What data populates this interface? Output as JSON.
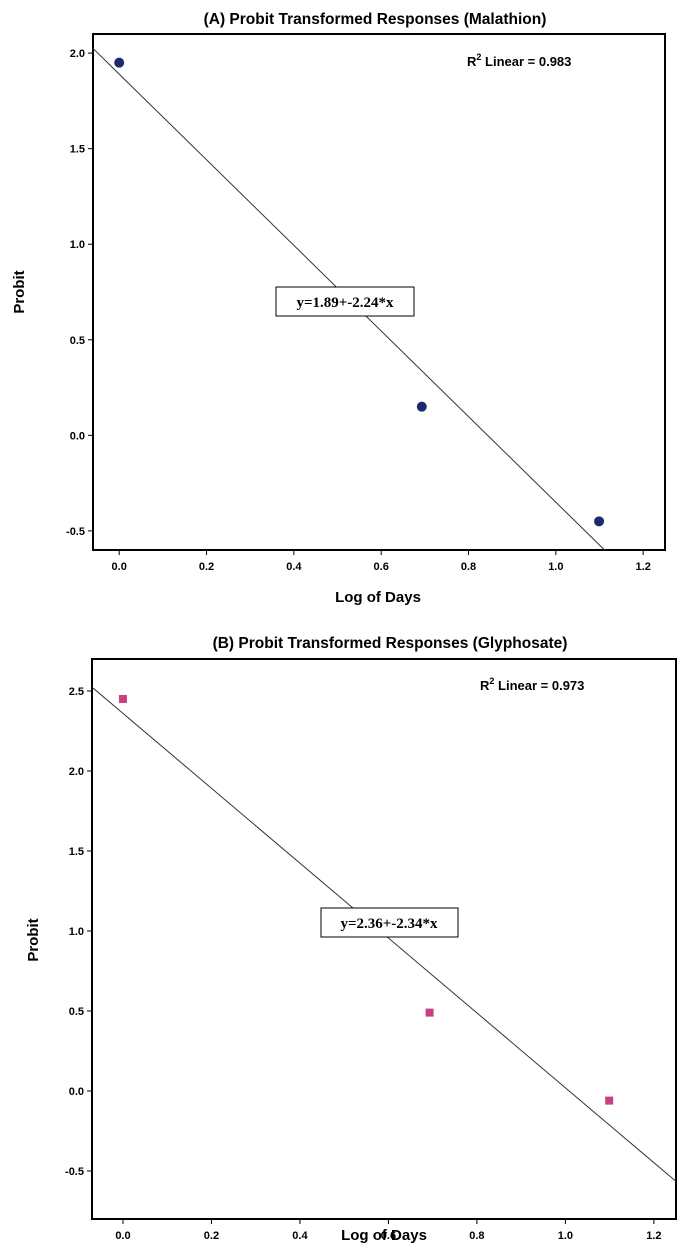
{
  "chart_data": [
    {
      "type": "scatter",
      "title": "(A) Probit Transformed Responses (Malathion)",
      "xlabel": "Log of Days",
      "ylabel": "Probit",
      "xlim": [
        -0.06,
        1.25
      ],
      "ylim": [
        -0.6,
        2.1
      ],
      "xticks": [
        0.0,
        0.2,
        0.4,
        0.6,
        0.8,
        1.0,
        1.2
      ],
      "xtick_labels": [
        "0.0",
        "0.2",
        "0.4",
        "0.6",
        "0.8",
        "1.0",
        "1.2"
      ],
      "yticks": [
        2.0,
        1.5,
        1.0,
        0.5,
        0.0,
        -0.5
      ],
      "ytick_labels": [
        "2.0",
        "1.5",
        "1.0",
        "0.5",
        "0.0",
        "-0.5"
      ],
      "series": [
        {
          "x": [
            0.0,
            0.693,
            1.099
          ],
          "y": [
            1.95,
            0.15,
            -0.45
          ],
          "marker": "circle",
          "color": "#1f2a6e"
        }
      ],
      "fit": {
        "intercept": 1.89,
        "slope": -2.24,
        "equation": "y=1.89+-2.24*x"
      },
      "r2_prefix": "R",
      "r2_sup": "2",
      "r2_label": " Linear = 0.983"
    },
    {
      "type": "scatter",
      "title": "(B) Probit Transformed Responses (Glyphosate)",
      "xlabel": "Log of Days",
      "ylabel": "Probit",
      "xlim": [
        -0.07,
        1.25
      ],
      "ylim": [
        -0.8,
        2.7
      ],
      "xticks": [
        0.0,
        0.2,
        0.4,
        0.6,
        0.8,
        1.0,
        1.2
      ],
      "xtick_labels": [
        "0.0",
        "0.2",
        "0.4",
        "0.6",
        "0.8",
        "1.0",
        "1.2"
      ],
      "yticks": [
        2.5,
        2.0,
        1.5,
        1.0,
        0.5,
        0.0,
        -0.5
      ],
      "ytick_labels": [
        "2.5",
        "2.0",
        "1.5",
        "1.0",
        "0.5",
        "0.0",
        "-0.5"
      ],
      "series": [
        {
          "x": [
            0.0,
            0.693,
            1.099
          ],
          "y": [
            2.45,
            0.49,
            -0.06
          ],
          "marker": "square",
          "color": "#c8407d"
        }
      ],
      "fit": {
        "intercept": 2.36,
        "slope": -2.34,
        "equation": "y=2.36+-2.34*x"
      },
      "r2_prefix": "R",
      "r2_sup": "2",
      "r2_label": " Linear = 0.973"
    }
  ]
}
